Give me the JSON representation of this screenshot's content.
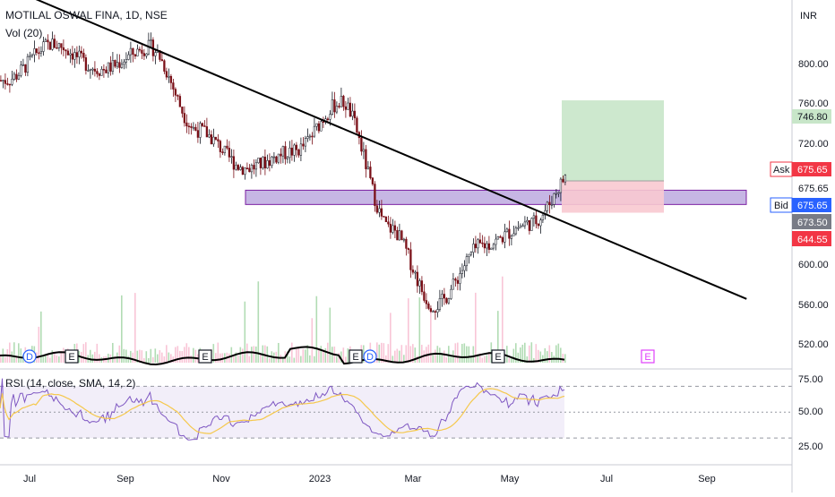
{
  "header": {
    "symbol": "MOTILAL OSWAL FINA, 1D, NSE",
    "volume_label": "Vol (20)",
    "rsi_label": "RSI (14, close, SMA, 14, 2)",
    "currency": "INR"
  },
  "price_axis": {
    "ticks": [
      "800.00",
      "760.00",
      "720.00",
      "675.65",
      "600.00",
      "560.00",
      "520.00"
    ],
    "tags": [
      {
        "kind": "label",
        "text": "746.80",
        "value": 746.8,
        "bg": "#c8e6c9",
        "fg": "#1b5e20"
      },
      {
        "kind": "label",
        "text": "Ask",
        "value": 683.0,
        "bg": "#ffffff",
        "fg": "#f23645"
      },
      {
        "kind": "label",
        "text": "675.65",
        "value": 683.0,
        "bg": "#f23645",
        "fg": "#ffffff"
      },
      {
        "kind": "label",
        "text": "Bid",
        "value": 662.0,
        "bg": "#ffffff",
        "fg": "#2962ff"
      },
      {
        "kind": "label",
        "text": "675.65",
        "value": 662.0,
        "bg": "#2962ff",
        "fg": "#ffffff"
      },
      {
        "kind": "label",
        "text": "673.50",
        "value": 650.0,
        "bg": "#787b86",
        "fg": "#ffffff"
      },
      {
        "kind": "label",
        "text": "644.55",
        "value": 634.0,
        "bg": "#f23645",
        "fg": "#ffffff"
      }
    ]
  },
  "rsi_axis": {
    "ticks": [
      "75.00",
      "50.00",
      "25.00"
    ]
  },
  "time_axis": {
    "labels": [
      "Jul",
      "Sep",
      "Nov",
      "2023",
      "Mar",
      "May",
      "Jul",
      "Sep"
    ]
  },
  "event_markers": [
    {
      "type": "dividend",
      "text": "D",
      "color": "#2962ff"
    },
    {
      "type": "earnings",
      "text": "E",
      "color": "#131722"
    },
    {
      "type": "earnings",
      "text": "E",
      "color": "#131722"
    },
    {
      "type": "earnings",
      "text": "E",
      "color": "#131722"
    },
    {
      "type": "dividend",
      "text": "D",
      "color": "#2962ff"
    },
    {
      "type": "earnings",
      "text": "E",
      "color": "#131722"
    },
    {
      "type": "earnings",
      "text": "E",
      "color": "#e040fb"
    }
  ],
  "colors": {
    "up": "#ffffff",
    "down": "#7a0f17",
    "trendline": "#000000",
    "zone_fill": "#b39ddb",
    "zone_border": "#7b1fa2",
    "target_fill": "#c8e6c9",
    "stop_fill": "#f8c9d0",
    "rsi_line": "#7e57c2",
    "rsi_ma": "#f5c84c",
    "rsi_band": "#ede7f6"
  },
  "chart_data": {
    "type": "candlestick",
    "exchange": "NSE",
    "timeframe": "1D",
    "price_range": [
      508,
      830
    ],
    "rsi_range": [
      10,
      82
    ],
    "support_zone": [
      652,
      665
    ],
    "trendline": [
      {
        "date": "2022-06-20",
        "price": 848
      },
      {
        "date": "2023-09-30",
        "price": 566
      }
    ],
    "position": {
      "entry": 673.5,
      "target": 746.8,
      "stop": 644.55
    },
    "rsi_levels": [
      70,
      50,
      30
    ],
    "month_anchors": [
      {
        "month": "2022-06",
        "price": 765
      },
      {
        "month": "2022-07",
        "price": 798
      },
      {
        "month": "2022-08",
        "price": 775
      },
      {
        "month": "2022-09",
        "price": 795
      },
      {
        "month": "2022-10",
        "price": 720
      },
      {
        "month": "2022-11",
        "price": 685
      },
      {
        "month": "2022-12",
        "price": 700
      },
      {
        "month": "2023-01",
        "price": 745
      },
      {
        "month": "2023-02",
        "price": 630
      },
      {
        "month": "2023-03",
        "price": 560
      },
      {
        "month": "2023-04",
        "price": 615
      },
      {
        "month": "2023-05",
        "price": 635
      },
      {
        "month": "2023-06",
        "price": 688
      }
    ]
  }
}
